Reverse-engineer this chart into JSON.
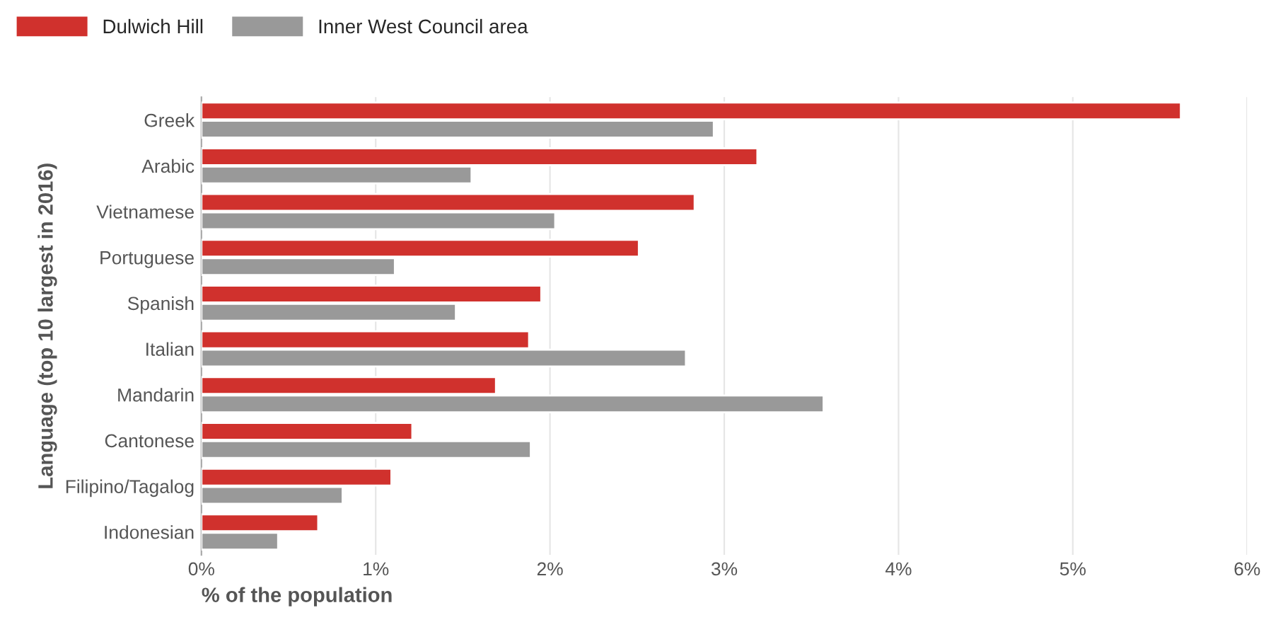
{
  "chart_data": {
    "type": "bar",
    "orientation": "horizontal",
    "xlabel": "% of the population",
    "ylabel": "Language (top 10 largest in 2016)",
    "categories": [
      "Greek",
      "Arabic",
      "Vietnamese",
      "Portuguese",
      "Spanish",
      "Italian",
      "Mandarin",
      "Cantonese",
      "Filipino/Tagalog",
      "Indonesian"
    ],
    "series": [
      {
        "name": "Dulwich Hill",
        "color": "#d0312d",
        "values": [
          5.62,
          3.19,
          2.83,
          2.51,
          1.95,
          1.88,
          1.69,
          1.21,
          1.09,
          0.67
        ]
      },
      {
        "name": "Inner West Council area",
        "color": "#999999",
        "values": [
          2.94,
          1.55,
          2.03,
          1.11,
          1.46,
          2.78,
          3.57,
          1.89,
          0.81,
          0.44
        ]
      }
    ],
    "xlim": [
      0,
      6
    ],
    "xticks": [
      {
        "value": 0,
        "label": "0%"
      },
      {
        "value": 1,
        "label": "1%"
      },
      {
        "value": 2,
        "label": "2%"
      },
      {
        "value": 3,
        "label": "3%"
      },
      {
        "value": 4,
        "label": "4%"
      },
      {
        "value": 5,
        "label": "5%"
      },
      {
        "value": 6,
        "label": "6%"
      }
    ],
    "grid": "x",
    "legend": "top left"
  }
}
